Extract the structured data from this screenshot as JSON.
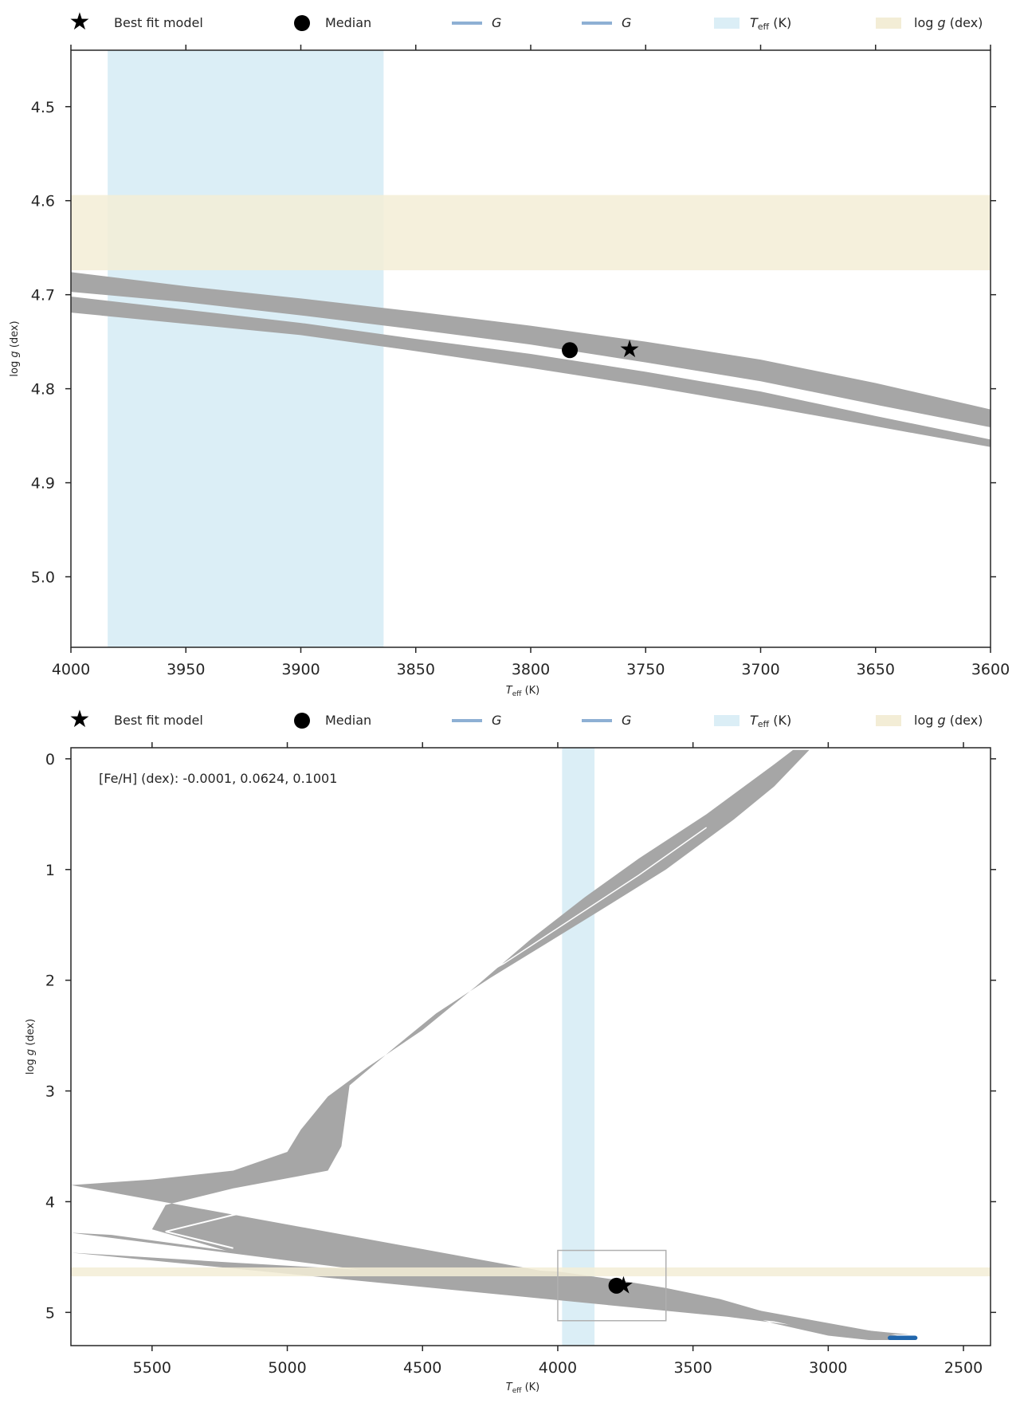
{
  "legend": {
    "best_fit": "Best fit model",
    "median": "Median",
    "g1": "G",
    "g2": "G",
    "teff_label": "T",
    "teff_sub": "eff",
    "teff_unit": " (K)",
    "logg_pre": "log ",
    "logg_var": "g",
    "logg_post": " (dex)"
  },
  "colors": {
    "track": "#a6a6a6",
    "teff_band": "#dbeef6",
    "logg_band": "#f3edd6",
    "g_line": "#8eb0d4",
    "blue_blob": "#2166ac",
    "marker": "#000000"
  },
  "chart_data": [
    {
      "type": "line",
      "title": "",
      "xlabel": "T_eff (K)",
      "ylabel": "log g (dex)",
      "xlim": [
        4000,
        3600
      ],
      "ylim": [
        5.075,
        4.44
      ],
      "x_inverted": true,
      "y_inverted": true,
      "xticks": [
        4000,
        3950,
        3900,
        3850,
        3800,
        3750,
        3700,
        3650,
        3600
      ],
      "yticks": [
        4.5,
        4.6,
        4.7,
        4.8,
        4.9,
        5.0
      ],
      "xtick_labels": [
        "4000",
        "3950",
        "3900",
        "3850",
        "3800",
        "3750",
        "3700",
        "3650",
        "3600"
      ],
      "ytick_labels": [
        "4.5",
        "4.6",
        "4.7",
        "4.8",
        "4.9",
        "5.0"
      ],
      "teff_band": [
        3984,
        3864
      ],
      "logg_band": [
        4.594,
        4.674
      ],
      "median": {
        "x": 3783,
        "y": 4.759
      },
      "best_fit": {
        "x": 3757,
        "y": 4.758
      },
      "tracks": [
        {
          "x": [
            4000,
            3950,
            3900,
            3850,
            3800,
            3750,
            3700,
            3650,
            3600
          ],
          "y_upper": [
            4.676,
            4.691,
            4.704,
            4.718,
            4.733,
            4.75,
            4.769,
            4.794,
            4.822
          ],
          "y_lower": [
            4.697,
            4.708,
            4.722,
            4.737,
            4.753,
            4.772,
            4.792,
            4.817,
            4.841
          ]
        },
        {
          "x": [
            4000,
            3950,
            3900,
            3850,
            3800,
            3750,
            3700,
            3650,
            3600
          ],
          "y_upper": [
            4.702,
            4.716,
            4.73,
            4.747,
            4.763,
            4.782,
            4.803,
            4.829,
            4.854
          ],
          "y_lower": [
            4.719,
            4.731,
            4.743,
            4.76,
            4.778,
            4.797,
            4.818,
            4.84,
            4.862
          ]
        }
      ]
    },
    {
      "type": "line",
      "title": "",
      "xlabel": "T_eff (K)",
      "ylabel": "log g (dex)",
      "xlim": [
        5800,
        2400
      ],
      "ylim": [
        5.3,
        -0.1
      ],
      "x_inverted": true,
      "y_inverted": true,
      "xticks": [
        5500,
        5000,
        4500,
        4000,
        3500,
        3000,
        2500
      ],
      "yticks": [
        0,
        1,
        2,
        3,
        4,
        5
      ],
      "xtick_labels": [
        "5500",
        "5000",
        "4500",
        "4000",
        "3500",
        "3000",
        "2500"
      ],
      "ytick_labels": [
        "0",
        "1",
        "2",
        "3",
        "4",
        "5"
      ],
      "annotation": "[Fe/H] (dex): -0.0001, 0.0624, 0.1001",
      "teff_band": [
        3984,
        3864
      ],
      "logg_band": [
        4.594,
        4.674
      ],
      "zoom_box": {
        "x": [
          4000,
          3600
        ],
        "y": [
          4.44,
          5.075
        ]
      },
      "median": {
        "x": 3783,
        "y": 4.759
      },
      "best_fit": {
        "x": 3757,
        "y": 4.758
      },
      "tracks": [
        {
          "upper": [
            [
              5800,
              3.85
            ],
            [
              5500,
              3.8
            ],
            [
              5200,
              3.72
            ],
            [
              5000,
              3.55
            ],
            [
              4950,
              3.35
            ],
            [
              4850,
              3.05
            ],
            [
              4700,
              2.78
            ],
            [
              4500,
              2.45
            ],
            [
              4300,
              2.05
            ],
            [
              4100,
              1.63
            ],
            [
              3900,
              1.25
            ],
            [
              3700,
              0.9
            ],
            [
              3450,
              0.5
            ],
            [
              3200,
              0.05
            ],
            [
              3130,
              -0.08
            ]
          ],
          "lower": [
            [
              3070,
              -0.08
            ],
            [
              3200,
              0.25
            ],
            [
              3350,
              0.55
            ],
            [
              3600,
              1.0
            ],
            [
              3850,
              1.38
            ],
            [
              4050,
              1.68
            ],
            [
              4250,
              1.98
            ],
            [
              4450,
              2.3
            ],
            [
              4600,
              2.6
            ],
            [
              4770,
              2.95
            ],
            [
              4800,
              3.5
            ],
            [
              4850,
              3.72
            ],
            [
              5200,
              3.88
            ],
            [
              5450,
              4.03
            ],
            [
              5500,
              4.25
            ],
            [
              5200,
              4.46
            ],
            [
              4700,
              4.6
            ],
            [
              4300,
              4.64
            ],
            [
              4000,
              4.67
            ],
            [
              3800,
              4.73
            ],
            [
              3600,
              4.82
            ],
            [
              3400,
              4.94
            ],
            [
              3200,
              5.08
            ],
            [
              3000,
              5.19
            ],
            [
              2850,
              5.23
            ],
            [
              2700,
              5.23
            ]
          ],
          "upper2": [
            [
              2700,
              5.2
            ],
            [
              2850,
              5.2
            ],
            [
              3000,
              5.15
            ],
            [
              3200,
              5.02
            ],
            [
              3400,
              4.88
            ],
            [
              3600,
              4.78
            ],
            [
              3800,
              4.7
            ],
            [
              4000,
              4.63
            ],
            [
              4300,
              4.6
            ],
            [
              4700,
              4.55
            ],
            [
              5200,
              4.45
            ],
            [
              5650,
              4.3
            ],
            [
              5800,
              4.28
            ]
          ],
          "lower2": [
            [
              5800,
              4.46
            ],
            [
              5200,
              4.55
            ],
            [
              4700,
              4.62
            ],
            [
              4300,
              4.66
            ],
            [
              4000,
              4.7
            ],
            [
              3800,
              4.76
            ],
            [
              3600,
              4.84
            ],
            [
              3400,
              4.96
            ],
            [
              3200,
              5.1
            ],
            [
              3000,
              5.21
            ],
            [
              2850,
              5.25
            ],
            [
              2700,
              5.25
            ]
          ]
        }
      ],
      "blue_segment": {
        "x": [
          2780,
          2670
        ],
        "y": [
          5.21,
          5.25
        ]
      }
    }
  ]
}
